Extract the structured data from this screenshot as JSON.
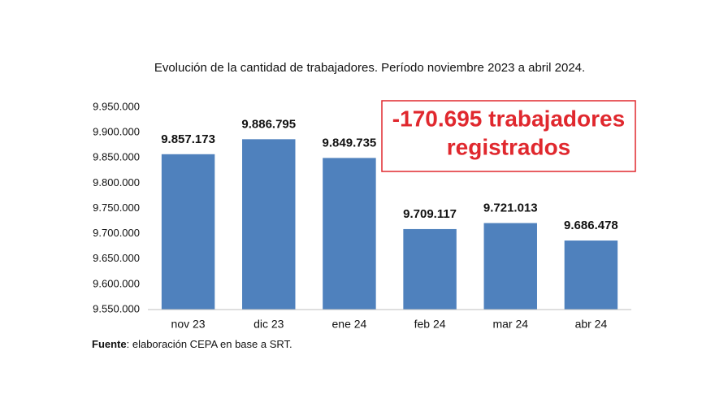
{
  "chart_data": {
    "type": "bar",
    "title": "Evolución de la cantidad de trabajadores.  Período noviembre 2023 a abril 2024.",
    "categories": [
      "nov 23",
      "dic 23",
      "ene 24",
      "feb 24",
      "mar 24",
      "abr 24"
    ],
    "values": [
      9857173,
      9886795,
      9849735,
      9709117,
      9721013,
      9686478
    ],
    "value_labels": [
      "9.857.173",
      "9.886.795",
      "9.849.735",
      "9.709.117",
      "9.721.013",
      "9.686.478"
    ],
    "color": "#4f81bd",
    "ylim": [
      9550000,
      9950000
    ],
    "yticks": [
      {
        "value": 9550000,
        "label": "9.550.000"
      },
      {
        "value": 9600000,
        "label": "9.600.000"
      },
      {
        "value": 9650000,
        "label": "9.650.000"
      },
      {
        "value": 9700000,
        "label": "9.700.000"
      },
      {
        "value": 9750000,
        "label": "9.750.000"
      },
      {
        "value": 9800000,
        "label": "9.800.000"
      },
      {
        "value": 9850000,
        "label": "9.850.000"
      },
      {
        "value": 9900000,
        "label": "9.900.000"
      },
      {
        "value": 9950000,
        "label": "9.950.000"
      }
    ],
    "grid": false,
    "annotation": [
      "-170.695 trabajadores",
      "registrados"
    ],
    "source_label": "Fuente",
    "source": ": elaboración CEPA en base a SRT."
  }
}
